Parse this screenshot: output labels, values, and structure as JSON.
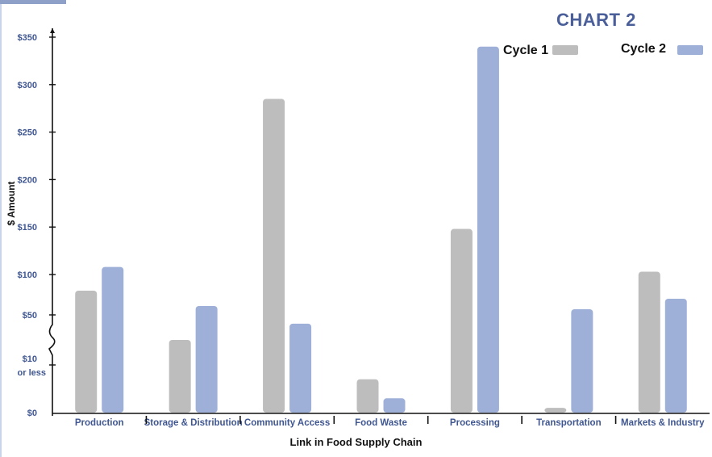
{
  "chart_data": {
    "type": "bar",
    "title": "CHART 2",
    "xlabel": "Link in Food Supply Chain",
    "ylabel": "$ Amount",
    "categories": [
      "Production",
      "Storage & Distribution",
      "Community Access",
      "Food Waste",
      "Processing",
      "Transportation",
      "Markets & Industry"
    ],
    "series": [
      {
        "name": "Cycle 1",
        "color": "#bdbdbd",
        "values": [
          80,
          30,
          285,
          7,
          148,
          1,
          103
        ]
      },
      {
        "name": "Cycle 2",
        "color": "#9fb0d8",
        "values": [
          108,
          61,
          43,
          3,
          340,
          57,
          70
        ]
      }
    ],
    "yticks": [
      {
        "label": "$350",
        "value": 350
      },
      {
        "label": "$300",
        "value": 300
      },
      {
        "label": "$250",
        "value": 250
      },
      {
        "label": "$200",
        "value": 200
      },
      {
        "label": "$150",
        "value": 150
      },
      {
        "label": "$100",
        "value": 100
      },
      {
        "label": "$50",
        "value": 50
      },
      {
        "label": "$10",
        "sublabel": "or less",
        "value": 10
      },
      {
        "label": "$0",
        "value": 0
      }
    ],
    "ylim": [
      0,
      350
    ],
    "axis_break": "between $10 and $50",
    "legend_position": "top-right",
    "grid": false
  }
}
